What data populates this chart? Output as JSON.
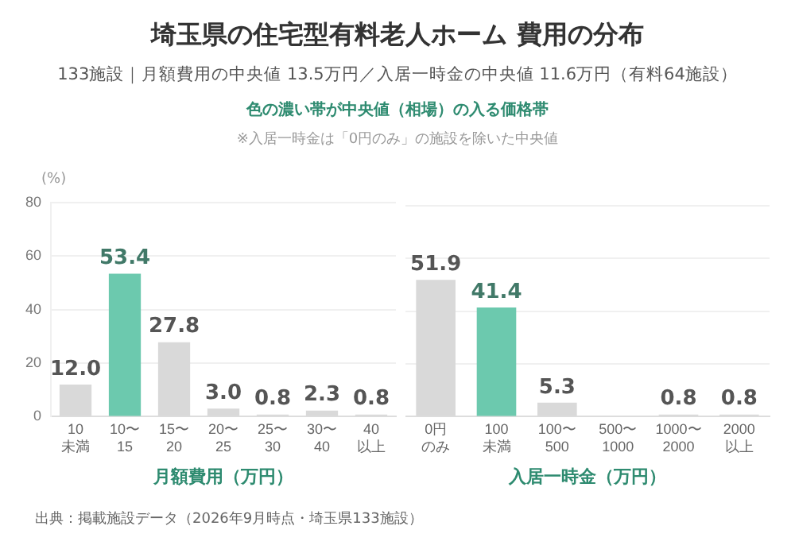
{
  "chart_data": [
    {
      "type": "bar",
      "title": "埼玉県の住宅型有料老人ホーム 費用の分布",
      "subtitle": "133施設｜月額費用の中央値 13.5万円／入居一時金の中央値 11.6万円（有料64施設）",
      "annotations": [
        "色の濃い帯が中央値（相場）の入る価格帯",
        "※入居一時金は「0円のみ」の施設を除いた中央値",
        "出典：掲載施設データ（2026年9月時点・埼玉県133施設）"
      ],
      "ylabel": "(%)",
      "xlabel": "月額費用（万円）",
      "categories": [
        "10未満",
        "10〜15",
        "15〜20",
        "20〜25",
        "25〜30",
        "30〜40",
        "40以上"
      ],
      "values": [
        12.0,
        53.4,
        27.8,
        3.0,
        0.8,
        2.3,
        0.8
      ],
      "value_labels": [
        "12.0",
        "53.4",
        "27.8",
        "3.0",
        "0.8",
        "2.3",
        "0.8"
      ],
      "colors": [
        "#d9d9d9",
        "#6cc9ae",
        "#d9d9d9",
        "#d9d9d9",
        "#d9d9d9",
        "#d9d9d9",
        "#d9d9d9"
      ],
      "ylim": [
        0,
        80
      ],
      "yticks": [
        0,
        20,
        40,
        60,
        80
      ],
      "grid": "y",
      "legend": false
    },
    {
      "type": "bar",
      "xlabel": "入居一時金（万円）",
      "categories": [
        "0円のみ",
        "100未満",
        "100〜500",
        "500〜1000",
        "1000〜2000",
        "2000以上"
      ],
      "values": [
        51.9,
        41.4,
        5.3,
        0,
        0.8,
        0.8
      ],
      "value_labels": [
        "51.9",
        "41.4",
        "5.3",
        null,
        "0.8",
        "0.8"
      ],
      "colors": [
        "#d9d9d9",
        "#6cc9ae",
        "#d9d9d9",
        "#d9d9d9",
        "#d9d9d9",
        "#d9d9d9"
      ],
      "ylim": [
        0,
        80
      ],
      "yticks": [
        0,
        20,
        40,
        60,
        80
      ],
      "grid": "y",
      "legend": false,
      "tick_labels": "x"
    }
  ]
}
